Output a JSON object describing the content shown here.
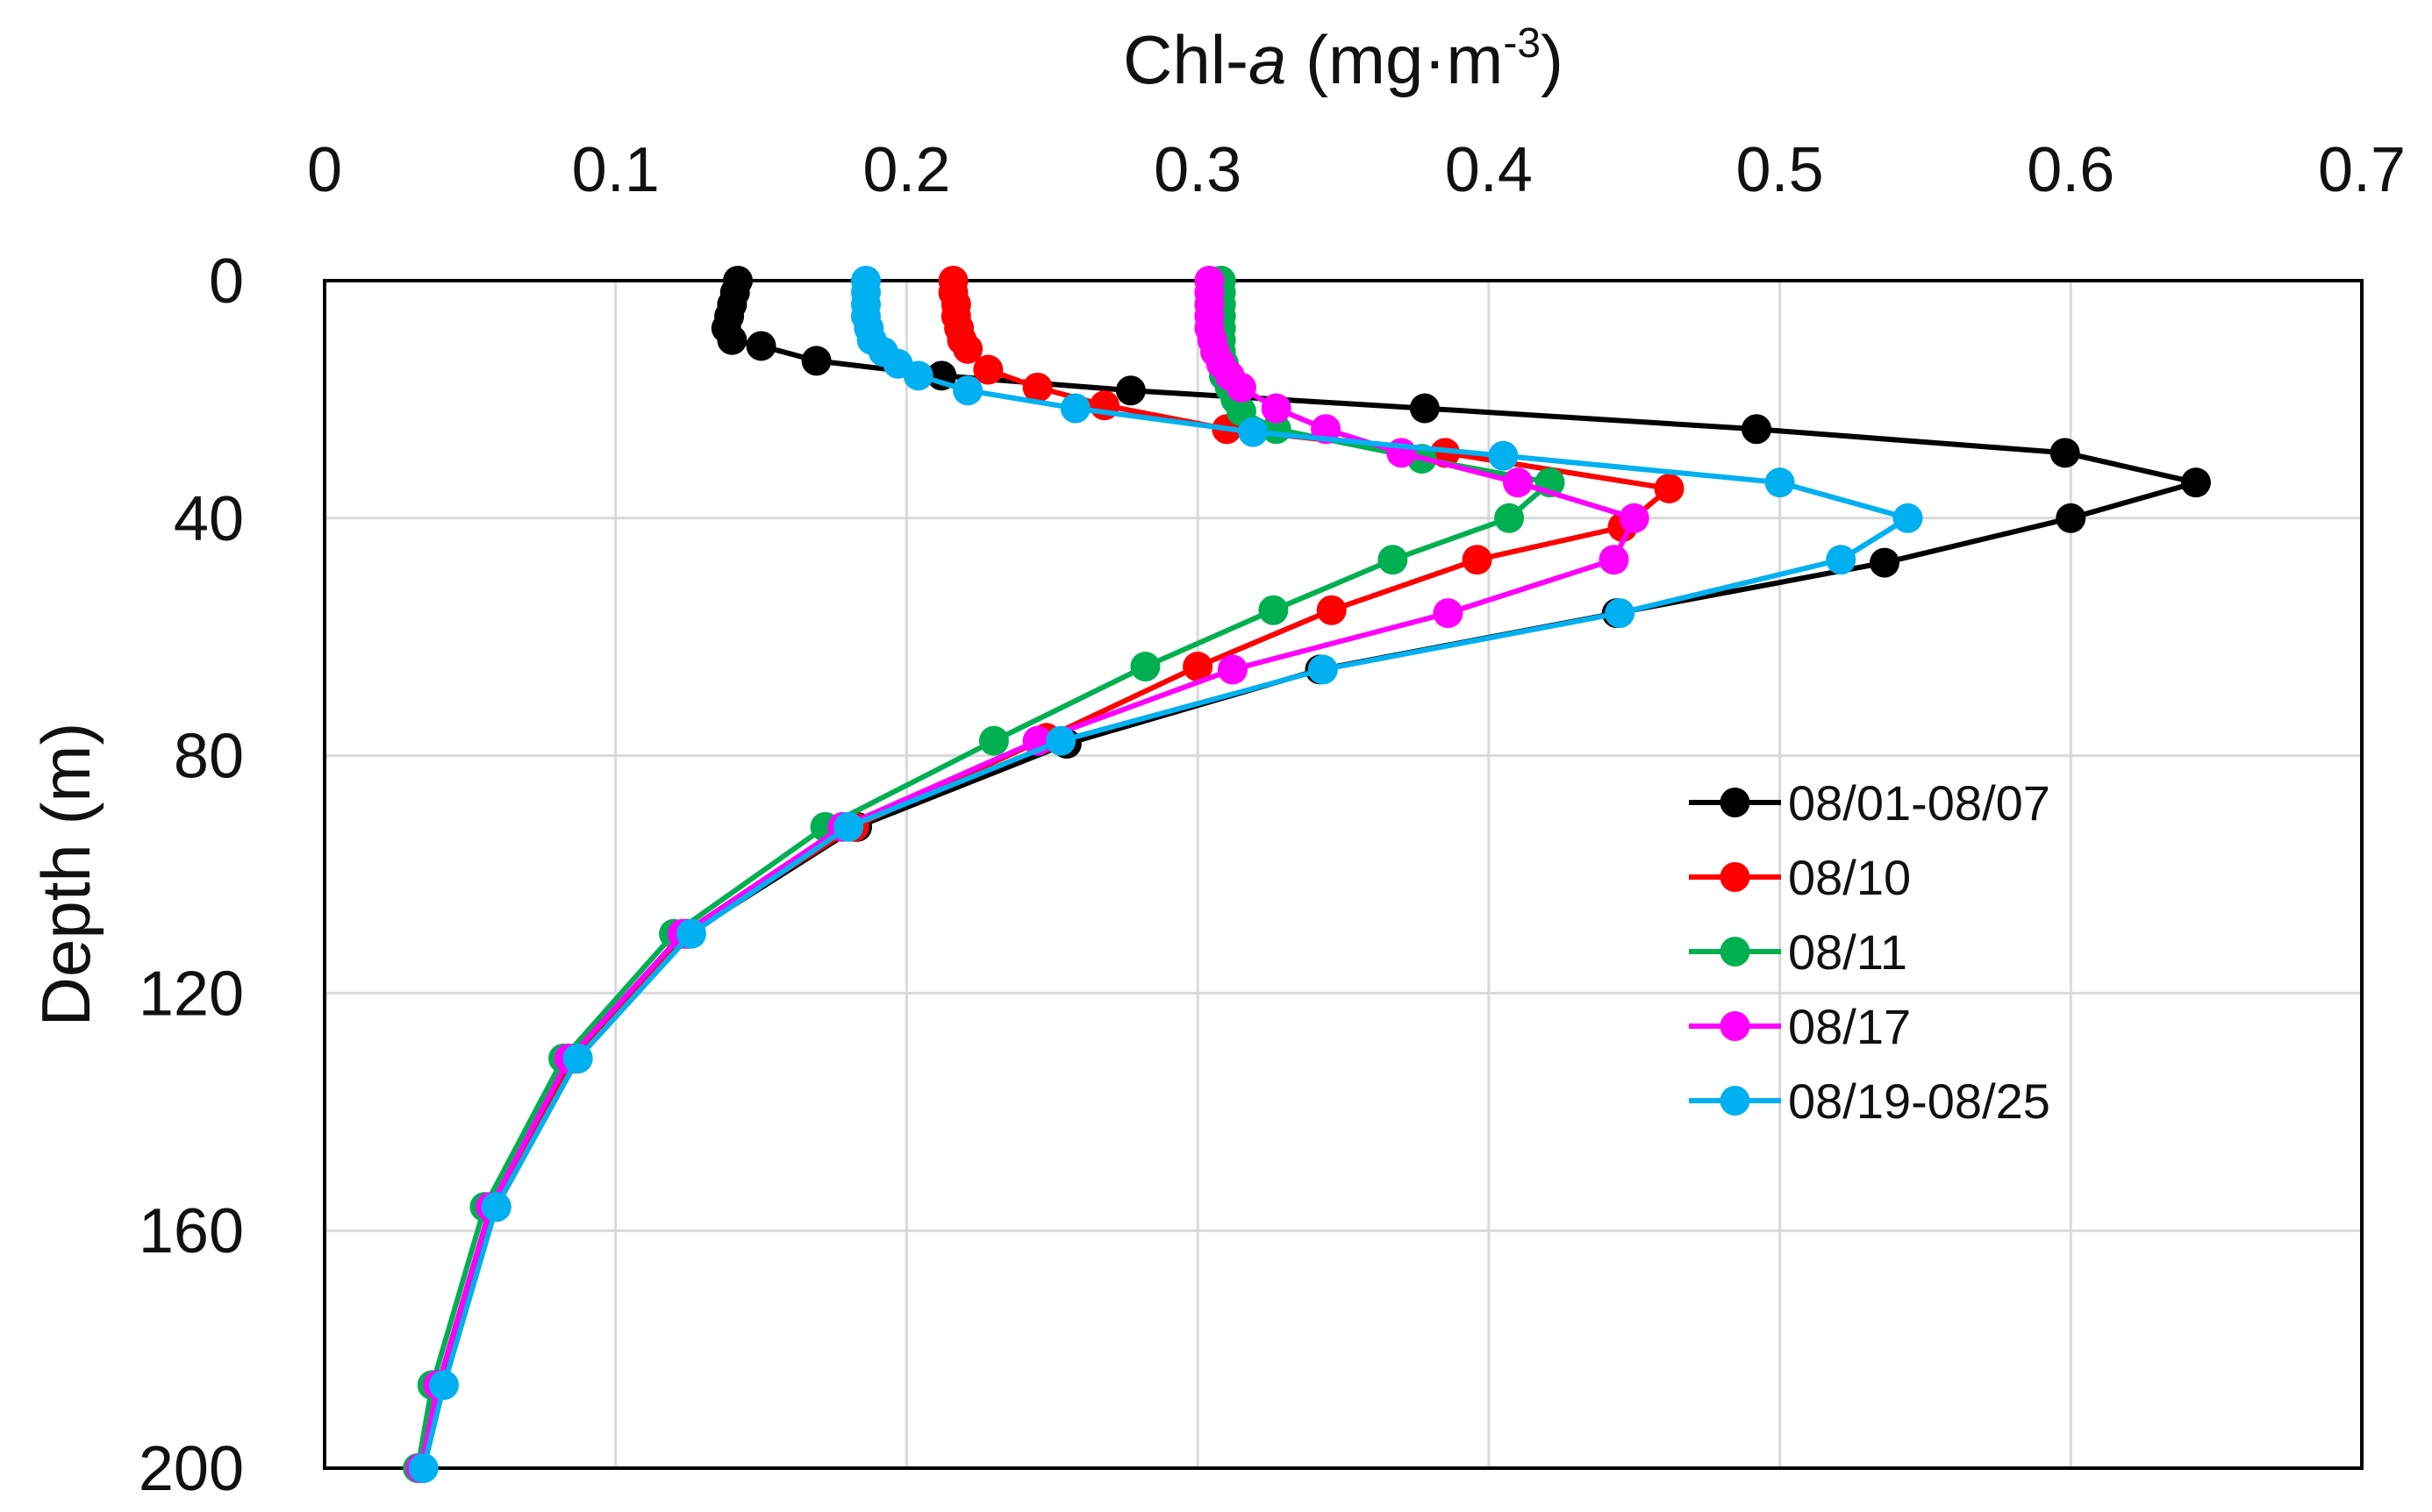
{
  "chart_data": {
    "type": "line",
    "title": "",
    "xlabel_prefix": "Chl-",
    "xlabel_italic": "a",
    "xlabel_unit": " (mg·m",
    "xlabel_exp": "-3",
    "xlabel_close": ")",
    "ylabel": "Depth (m)",
    "xlim": [
      0,
      0.7
    ],
    "ylim": [
      0,
      200
    ],
    "x_axis_position": "top",
    "y_inverted": true,
    "grid": true,
    "legend_position": "right-middle",
    "x_ticks": [
      0,
      0.1,
      0.2,
      0.3,
      0.4,
      0.5,
      0.6,
      0.7
    ],
    "x_tick_labels": [
      "0",
      "0.1",
      "0.2",
      "0.3",
      "0.4",
      "0.5",
      "0.6",
      "0.7"
    ],
    "y_ticks": [
      0,
      40,
      80,
      120,
      160,
      200
    ],
    "y_tick_labels": [
      "0",
      "40",
      "80",
      "120",
      "160",
      "200"
    ],
    "series": [
      {
        "name": "08/01-08/07",
        "color": "#000000",
        "points": [
          [
            0.142,
            0
          ],
          [
            0.141,
            2
          ],
          [
            0.14,
            4
          ],
          [
            0.139,
            6
          ],
          [
            0.138,
            8
          ],
          [
            0.14,
            10
          ],
          [
            0.15,
            11
          ],
          [
            0.169,
            13.5
          ],
          [
            0.212,
            16
          ],
          [
            0.277,
            18.5
          ],
          [
            0.378,
            21.5
          ],
          [
            0.492,
            25
          ],
          [
            0.598,
            29
          ],
          [
            0.643,
            34
          ],
          [
            0.6,
            40
          ],
          [
            0.536,
            47.5
          ],
          [
            0.444,
            56
          ],
          [
            0.342,
            65.5
          ],
          [
            0.255,
            78
          ],
          [
            0.183,
            92
          ],
          [
            0.125,
            110
          ],
          [
            0.087,
            131
          ],
          [
            0.059,
            156
          ],
          [
            0.04,
            186
          ],
          [
            0.033,
            200
          ]
        ]
      },
      {
        "name": "08/10",
        "color": "#ff0000",
        "points": [
          [
            0.216,
            0
          ],
          [
            0.216,
            2
          ],
          [
            0.217,
            4
          ],
          [
            0.217,
            6
          ],
          [
            0.218,
            8
          ],
          [
            0.219,
            10
          ],
          [
            0.221,
            11.5
          ],
          [
            0.228,
            15
          ],
          [
            0.245,
            18
          ],
          [
            0.268,
            21
          ],
          [
            0.31,
            25
          ],
          [
            0.385,
            29
          ],
          [
            0.462,
            35
          ],
          [
            0.446,
            41.5
          ],
          [
            0.396,
            47
          ],
          [
            0.346,
            55.5
          ],
          [
            0.3,
            65
          ],
          [
            0.248,
            77
          ],
          [
            0.182,
            92
          ],
          [
            0.124,
            110
          ],
          [
            0.086,
            131
          ],
          [
            0.058,
            156
          ],
          [
            0.039,
            186
          ],
          [
            0.033,
            200
          ]
        ]
      },
      {
        "name": "08/11",
        "color": "#00b050",
        "points": [
          [
            0.308,
            0
          ],
          [
            0.308,
            2
          ],
          [
            0.308,
            4
          ],
          [
            0.308,
            6
          ],
          [
            0.308,
            8
          ],
          [
            0.308,
            10
          ],
          [
            0.308,
            12
          ],
          [
            0.309,
            14
          ],
          [
            0.309,
            16
          ],
          [
            0.311,
            18
          ],
          [
            0.313,
            20
          ],
          [
            0.315,
            22
          ],
          [
            0.327,
            25
          ],
          [
            0.377,
            30
          ],
          [
            0.421,
            34
          ],
          [
            0.407,
            40
          ],
          [
            0.367,
            47
          ],
          [
            0.326,
            55.5
          ],
          [
            0.282,
            65
          ],
          [
            0.23,
            77.5
          ],
          [
            0.172,
            92
          ],
          [
            0.12,
            110
          ],
          [
            0.082,
            131
          ],
          [
            0.055,
            156
          ],
          [
            0.037,
            186
          ],
          [
            0.032,
            200
          ]
        ]
      },
      {
        "name": "08/17",
        "color": "#ff00ff",
        "points": [
          [
            0.304,
            0
          ],
          [
            0.304,
            2
          ],
          [
            0.304,
            4
          ],
          [
            0.304,
            6
          ],
          [
            0.304,
            8
          ],
          [
            0.305,
            10
          ],
          [
            0.306,
            12
          ],
          [
            0.308,
            14
          ],
          [
            0.311,
            16
          ],
          [
            0.315,
            18
          ],
          [
            0.327,
            21.5
          ],
          [
            0.344,
            25
          ],
          [
            0.37,
            29
          ],
          [
            0.41,
            34
          ],
          [
            0.45,
            40
          ],
          [
            0.443,
            47
          ],
          [
            0.386,
            56
          ],
          [
            0.312,
            65.5
          ],
          [
            0.245,
            77.5
          ],
          [
            0.178,
            92
          ],
          [
            0.123,
            110
          ],
          [
            0.084,
            131
          ],
          [
            0.057,
            156
          ],
          [
            0.039,
            186
          ],
          [
            0.033,
            200
          ]
        ]
      },
      {
        "name": "08/19-08/25",
        "color": "#00b0f0",
        "points": [
          [
            0.186,
            0
          ],
          [
            0.186,
            2
          ],
          [
            0.186,
            4
          ],
          [
            0.186,
            6
          ],
          [
            0.187,
            8
          ],
          [
            0.188,
            10
          ],
          [
            0.192,
            12
          ],
          [
            0.197,
            14
          ],
          [
            0.204,
            16
          ],
          [
            0.221,
            18.5
          ],
          [
            0.258,
            21.5
          ],
          [
            0.319,
            25.5
          ],
          [
            0.405,
            29.5
          ],
          [
            0.5,
            34
          ],
          [
            0.544,
            40
          ],
          [
            0.521,
            47
          ],
          [
            0.445,
            56
          ],
          [
            0.343,
            65.5
          ],
          [
            0.253,
            77.5
          ],
          [
            0.18,
            92
          ],
          [
            0.126,
            110
          ],
          [
            0.087,
            131
          ],
          [
            0.059,
            156
          ],
          [
            0.041,
            186
          ],
          [
            0.034,
            200
          ]
        ]
      }
    ]
  }
}
